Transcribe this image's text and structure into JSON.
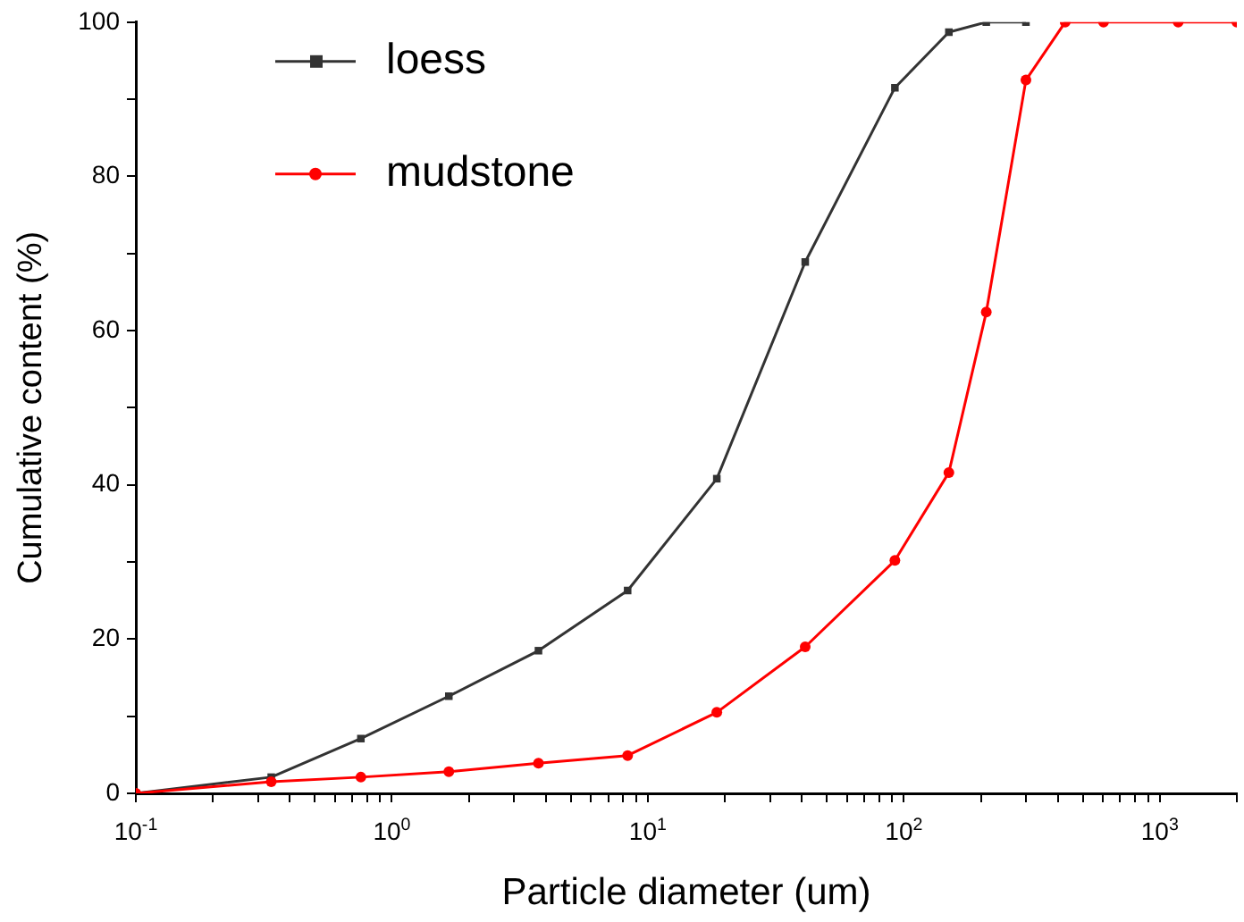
{
  "chart_data": {
    "type": "line",
    "xlabel": "Particle diameter (um)",
    "ylabel": "Cumulative content (%)",
    "x": [
      0.1,
      0.338,
      0.757,
      1.67,
      3.74,
      8.34,
      18.6,
      41.2,
      92.3,
      150,
      210,
      300,
      427,
      603,
      1180,
      2000
    ],
    "series": [
      {
        "name": "loess",
        "color": "#333333",
        "marker": "square",
        "values": [
          0,
          2.1,
          7.1,
          12.6,
          18.5,
          26.3,
          40.8,
          68.9,
          91.5,
          98.7,
          100,
          100,
          null,
          null,
          null,
          null
        ]
      },
      {
        "name": "mudstone",
        "color": "#ff0000",
        "marker": "circle",
        "values": [
          0,
          1.5,
          2.1,
          2.8,
          3.9,
          4.9,
          10.5,
          19,
          30.2,
          41.6,
          62.4,
          92.5,
          100,
          100,
          100,
          100
        ]
      }
    ],
    "log": "x",
    "xlim": [
      0.1,
      2000
    ],
    "xticks": [
      {
        "value": 0.1,
        "label": "10$^{-1}$"
      },
      {
        "value": 0.2,
        "label": null
      },
      {
        "value": 0.3,
        "label": null
      },
      {
        "value": 0.4,
        "label": null
      },
      {
        "value": 0.5,
        "label": null
      },
      {
        "value": 0.6,
        "label": null
      },
      {
        "value": 0.7,
        "label": null
      },
      {
        "value": 0.8,
        "label": null
      },
      {
        "value": 0.9,
        "label": null
      },
      {
        "value": 1,
        "label": "10$^{0}$"
      },
      {
        "value": 2,
        "label": null
      },
      {
        "value": 3,
        "label": null
      },
      {
        "value": 4,
        "label": null
      },
      {
        "value": 5,
        "label": null
      },
      {
        "value": 6,
        "label": null
      },
      {
        "value": 7,
        "label": null
      },
      {
        "value": 8,
        "label": null
      },
      {
        "value": 9,
        "label": null
      },
      {
        "value": 10,
        "label": "10$^{1}$"
      },
      {
        "value": 20,
        "label": null
      },
      {
        "value": 30,
        "label": null
      },
      {
        "value": 40,
        "label": null
      },
      {
        "value": 50,
        "label": null
      },
      {
        "value": 60,
        "label": null
      },
      {
        "value": 70,
        "label": null
      },
      {
        "value": 80,
        "label": null
      },
      {
        "value": 90,
        "label": null
      },
      {
        "value": 100,
        "label": "10$^{2}$"
      },
      {
        "value": 200,
        "label": null
      },
      {
        "value": 300,
        "label": null
      },
      {
        "value": 400,
        "label": null
      },
      {
        "value": 500,
        "label": null
      },
      {
        "value": 600,
        "label": null
      },
      {
        "value": 700,
        "label": null
      },
      {
        "value": 800,
        "label": null
      },
      {
        "value": 900,
        "label": null
      },
      {
        "value": 1000,
        "label": "10$^{3}$"
      },
      {
        "value": 2000,
        "label": null
      }
    ],
    "ylim": [
      0,
      100
    ],
    "yticks": [
      0,
      {
        "value": 10,
        "label": null
      },
      20,
      {
        "value": 30,
        "label": null
      },
      40,
      {
        "value": 50,
        "label": null
      },
      60,
      {
        "value": 70,
        "label": null
      },
      80,
      {
        "value": 90,
        "label": null
      },
      100
    ],
    "grid": false,
    "legend": "top left",
    "line_style": "solid"
  }
}
